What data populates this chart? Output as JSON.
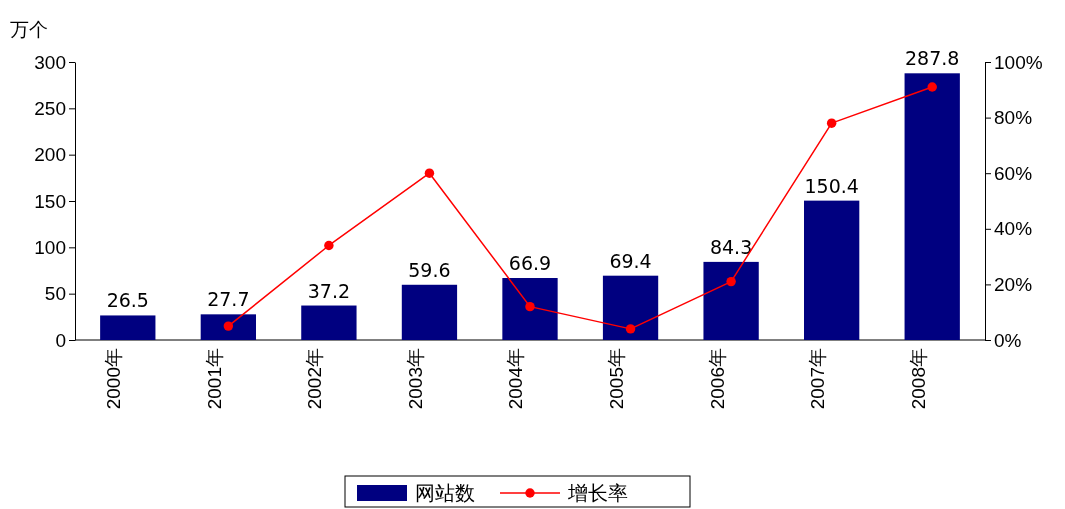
{
  "chart_data": {
    "type": "bar",
    "ylabel": "万个",
    "categories": [
      "2000年",
      "2001年",
      "2002年",
      "2003年",
      "2004年",
      "2005年",
      "2006年",
      "2007年",
      "2008年"
    ],
    "series": [
      {
        "name": "网站数",
        "color": "#000080",
        "values": [
          26.5,
          27.7,
          37.2,
          59.6,
          66.9,
          69.4,
          84.3,
          150.4,
          287.8
        ],
        "value_labels": [
          "26.5",
          "27.7",
          "37.2",
          "59.6",
          "66.9",
          "69.4",
          "84.3",
          "150.4",
          "287.8"
        ]
      },
      {
        "name": "增长率",
        "type": "line",
        "axis": "y2",
        "color": "#ff0000",
        "values": [
          null,
          5,
          34,
          60,
          12,
          4,
          21,
          78,
          91
        ]
      }
    ],
    "marker": "circle",
    "line_style": "solid",
    "legend": "bottom",
    "grid": false,
    "ylim": [
      0,
      300
    ],
    "yticks": [
      0,
      50,
      100,
      150,
      200,
      250,
      300
    ],
    "y2lim": [
      0,
      100
    ],
    "y2ticks": [
      {
        "value": 0,
        "label": "0%"
      },
      {
        "value": 20,
        "label": "20%"
      },
      {
        "value": 40,
        "label": "40%"
      },
      {
        "value": 60,
        "label": "60%"
      },
      {
        "value": 80,
        "label": "80%"
      },
      {
        "value": 100,
        "label": "100%"
      }
    ]
  }
}
